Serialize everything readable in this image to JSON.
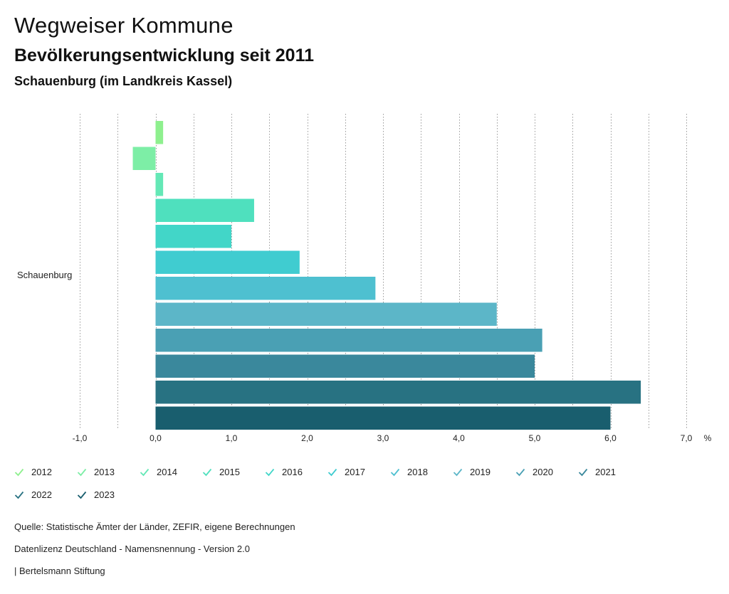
{
  "header": {
    "title": "Wegweiser Kommune",
    "subtitle": "Bevölkerungsentwicklung seit 2011",
    "region": "Schauenburg (im Landkreis Kassel)"
  },
  "chart_data": {
    "type": "bar",
    "orientation": "horizontal",
    "categories": [
      "Schauenburg"
    ],
    "series": [
      {
        "name": "2012",
        "values": [
          0.1
        ],
        "color": "#8ef08e"
      },
      {
        "name": "2013",
        "values": [
          -0.3
        ],
        "color": "#7deea6"
      },
      {
        "name": "2014",
        "values": [
          0.1
        ],
        "color": "#64e8b6"
      },
      {
        "name": "2015",
        "values": [
          1.3
        ],
        "color": "#4fe0be"
      },
      {
        "name": "2016",
        "values": [
          1.0
        ],
        "color": "#42d6c8"
      },
      {
        "name": "2017",
        "values": [
          1.9
        ],
        "color": "#40ccd0"
      },
      {
        "name": "2018",
        "values": [
          2.9
        ],
        "color": "#4ec0d0"
      },
      {
        "name": "2019",
        "values": [
          4.5
        ],
        "color": "#5cb6c8"
      },
      {
        "name": "2020",
        "values": [
          5.1
        ],
        "color": "#4aa0b4"
      },
      {
        "name": "2021",
        "values": [
          5.0
        ],
        "color": "#3a889c"
      },
      {
        "name": "2022",
        "values": [
          6.4
        ],
        "color": "#287282"
      },
      {
        "name": "2023",
        "values": [
          6.0
        ],
        "color": "#195e6e"
      }
    ],
    "xlim": [
      -1.0,
      7.0
    ],
    "xticks": [
      "-1,0",
      "0,0",
      "1,0",
      "2,0",
      "3,0",
      "4,0",
      "5,0",
      "6,0",
      "7,0"
    ],
    "unit": "%",
    "grid": true
  },
  "footer": {
    "source": "Quelle: Statistische Ämter der Länder, ZEFIR, eigene Berechnungen",
    "license": "Datenlizenz Deutschland - Namensnennung - Version 2.0",
    "publisher": "| Bertelsmann Stiftung"
  }
}
